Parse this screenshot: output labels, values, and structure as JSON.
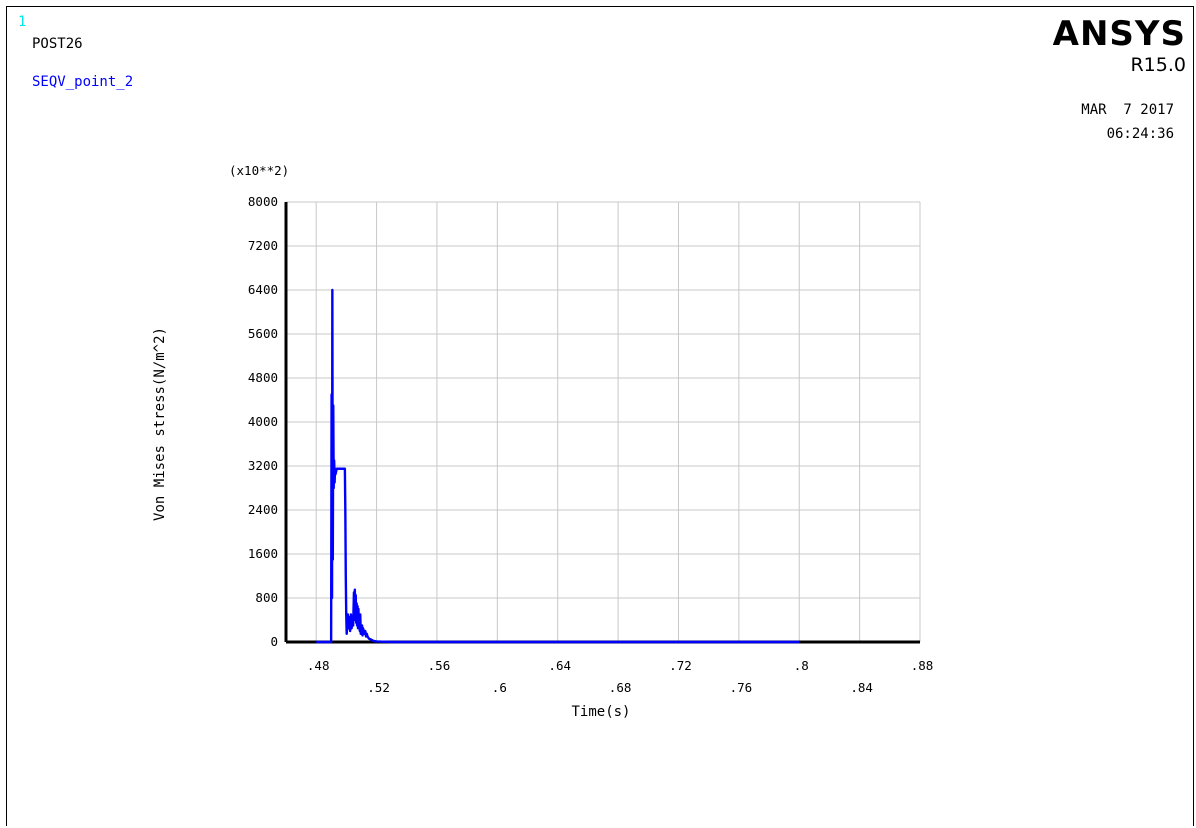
{
  "window": {
    "number": "1",
    "module": "POST26",
    "variable": "SEQV_point_2",
    "brand": "ANSYS",
    "version": "R15.0",
    "date": "MAR  7 2017",
    "time": "06:24:36"
  },
  "colors": {
    "series": "#0000ff",
    "grid": "#c8c8c8",
    "axis": "#000000",
    "window_number": "#00e5e5"
  },
  "chart_data": {
    "type": "line",
    "multiplier": "(x10**2)",
    "xlabel": "Time(s)",
    "ylabel": "Von Mises stress(N/m^2)",
    "xlim": [
      0.46,
      0.88
    ],
    "ylim": [
      0,
      8000
    ],
    "x_ticks_lower": [
      ".48",
      ".52",
      ".56",
      ".6",
      ".64",
      ".68",
      ".72",
      ".76",
      ".8",
      ".84",
      ".88"
    ],
    "x_ticks_upper": [
      ".48",
      ".56",
      ".64",
      ".72",
      ".8",
      ".88"
    ],
    "x_ticks_lower_labels": [
      ".52",
      ".6",
      ".68",
      ".76",
      ".84"
    ],
    "y_ticks": [
      "0",
      "800",
      "1600",
      "2400",
      "3200",
      "4000",
      "4800",
      "5600",
      "6400",
      "7200",
      "8000"
    ],
    "grid": true,
    "series": [
      {
        "x": [
          0.48,
          0.4899,
          0.4902,
          0.4905,
          0.4907,
          0.491,
          0.4913,
          0.4916,
          0.4919,
          0.4922,
          0.4925,
          0.4928,
          0.4932,
          0.4936,
          0.494,
          0.4945,
          0.495,
          0.496,
          0.497,
          0.498,
          0.499,
          0.4993,
          0.4996,
          0.4999,
          0.5002,
          0.5006,
          0.501,
          0.5015,
          0.502,
          0.5025,
          0.503,
          0.5035,
          0.504,
          0.5045,
          0.505,
          0.5053,
          0.5056,
          0.5059,
          0.5062,
          0.5065,
          0.5068,
          0.5071,
          0.5074,
          0.5077,
          0.508,
          0.5083,
          0.5086,
          0.5089,
          0.5092,
          0.5095,
          0.5098,
          0.5101,
          0.5104,
          0.5107,
          0.511,
          0.5115,
          0.512,
          0.5125,
          0.513,
          0.5135,
          0.514,
          0.5145,
          0.515,
          0.516,
          0.518,
          0.52,
          0.524,
          0.53,
          0.56,
          0.6,
          0.64,
          0.68,
          0.72,
          0.76,
          0.8
        ],
        "y": [
          0,
          0,
          4500,
          800,
          6400,
          1500,
          4300,
          2800,
          3300,
          2900,
          3150,
          3050,
          3100,
          3150,
          3150,
          3150,
          3150,
          3150,
          3150,
          3150,
          3150,
          2400,
          1200,
          500,
          150,
          300,
          500,
          250,
          450,
          200,
          500,
          250,
          450,
          300,
          900,
          600,
          950,
          400,
          850,
          350,
          700,
          300,
          650,
          250,
          600,
          250,
          450,
          200,
          500,
          150,
          300,
          150,
          300,
          120,
          250,
          200,
          150,
          200,
          100,
          150,
          100,
          80,
          60,
          50,
          20,
          10,
          5,
          0,
          0,
          0,
          0,
          0,
          0,
          0,
          0
        ]
      }
    ]
  }
}
